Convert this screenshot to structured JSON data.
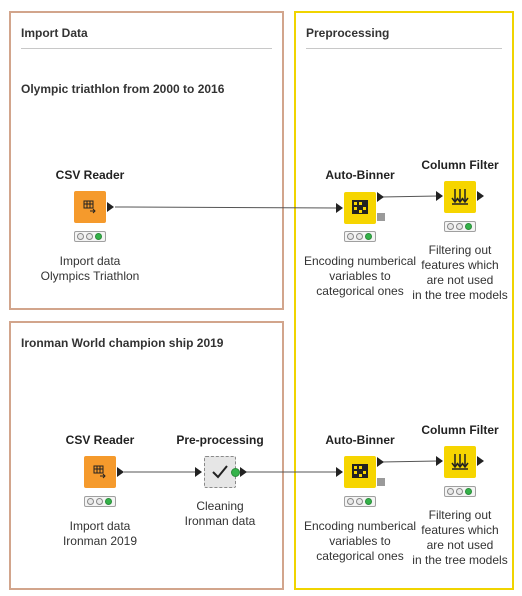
{
  "annotations": {
    "import_data": {
      "title": "Import Data",
      "subtitle": "Olympic triathlon from 2000 to 2016"
    },
    "ironman": {
      "title": "Ironman World champion ship 2019"
    },
    "preprocessing": {
      "title": "Preprocessing"
    }
  },
  "nodes": {
    "csv_reader_1": {
      "title": "CSV Reader",
      "description": "Import data\nOlympics Triathlon",
      "status": "executed",
      "icon": "table-arrow-icon",
      "color": "#f59a2c"
    },
    "auto_binner_1": {
      "title": "Auto-Binner",
      "description": "Encoding numberical\nvariables to\ncategorical ones",
      "status": "executed",
      "icon": "binner-icon",
      "color": "#f6d500"
    },
    "column_filter_1": {
      "title": "Column Filter",
      "description": "Filtering out\nfeatures which\nare not used\nin the tree models",
      "status": "idle",
      "icon": "filter-arrows-icon",
      "color": "#f6d500"
    },
    "csv_reader_2": {
      "title": "CSV Reader",
      "description": "Import data\nIronman 2019",
      "status": "executed",
      "icon": "table-arrow-icon",
      "color": "#f59a2c"
    },
    "preprocessing_meta": {
      "title": "Pre-processing",
      "description": "Cleaning\nIronman data",
      "status": "metanode",
      "icon": "checkmark-icon",
      "color": "#e6e6e6"
    },
    "auto_binner_2": {
      "title": "Auto-Binner",
      "description": "Encoding numberical\nvariables to\ncategorical ones",
      "status": "executed",
      "icon": "binner-icon",
      "color": "#f6d500"
    },
    "column_filter_2": {
      "title": "Column Filter",
      "description": "Filtering out\nfeatures which\nare not used\nin the tree models",
      "status": "idle",
      "icon": "filter-arrows-icon",
      "color": "#f6d500"
    }
  }
}
